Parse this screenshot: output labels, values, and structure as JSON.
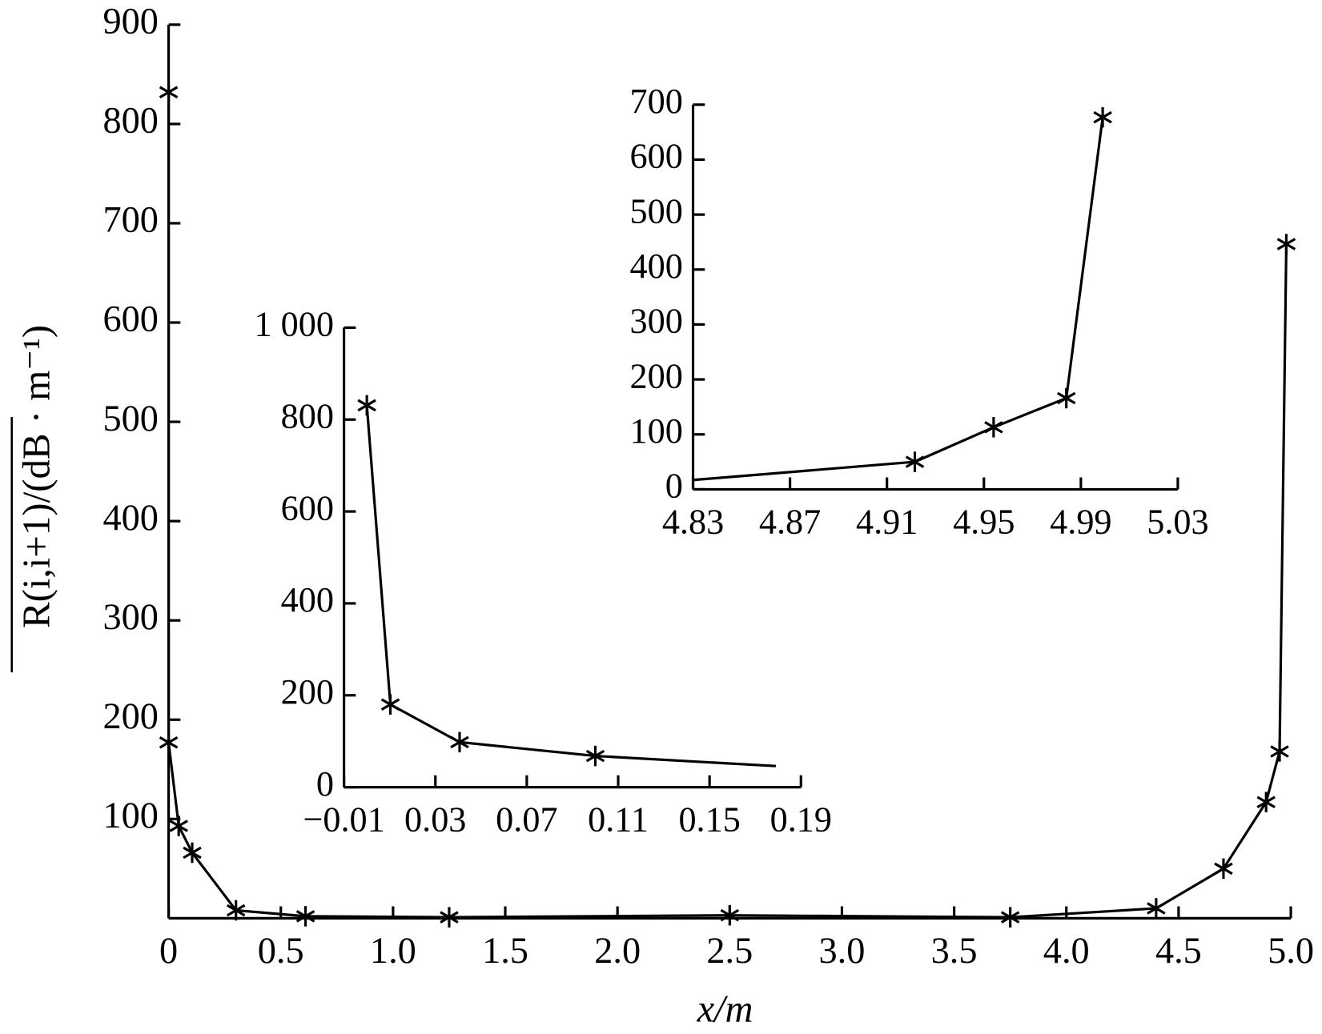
{
  "chart_data": [
    {
      "type": "line",
      "x_label": "x/m",
      "y_label": "R(i,i+1)/(dB · m⁻¹)",
      "color": "#000000",
      "xlim": [
        0,
        5.0
      ],
      "ylim": [
        0,
        900
      ],
      "xticks": [
        0,
        0.5,
        {
          "value": 1,
          "label": "1.0"
        },
        1.5,
        {
          "value": 2,
          "label": "2.0"
        },
        2.5,
        {
          "value": 3,
          "label": "3.0"
        },
        3.5,
        {
          "value": 4,
          "label": "4.0"
        },
        4.5,
        {
          "value": 5,
          "label": "5.0"
        }
      ],
      "yticks": [
        100,
        200,
        300,
        400,
        500,
        600,
        700,
        800,
        900
      ],
      "x": [
        0,
        0,
        0.045,
        0.105,
        0.3,
        0.61,
        1.25,
        2.5,
        3.75,
        4.4,
        4.7,
        4.89,
        4.95,
        4.98
      ],
      "values": [
        832,
        177,
        93,
        66,
        8,
        2,
        1,
        3,
        1,
        10,
        50,
        117,
        168,
        679
      ],
      "markers": [
        true,
        true,
        true,
        true,
        true,
        true,
        true,
        true,
        true,
        true,
        true,
        true,
        true,
        true
      ]
    },
    {
      "type": "line",
      "color": "#000000",
      "xlim": [
        -0.01,
        0.19
      ],
      "ylim": [
        0,
        1000
      ],
      "xticks": [
        {
          "value": -0.01,
          "label": "−0.01"
        },
        0.03,
        0.07,
        0.11,
        0.15,
        0.19
      ],
      "yticks": [
        0,
        200,
        400,
        600,
        800,
        {
          "value": 1000,
          "label": "1 000"
        }
      ],
      "x": [
        0.0,
        0.0103,
        0.0406,
        0.1,
        0.179
      ],
      "values": [
        831,
        180,
        98,
        68,
        46
      ],
      "markers": [
        true,
        true,
        true,
        true,
        false
      ]
    },
    {
      "type": "line",
      "color": "#000000",
      "xlim": [
        4.83,
        5.03
      ],
      "ylim": [
        0,
        700
      ],
      "xticks": [
        4.83,
        4.87,
        4.91,
        4.95,
        4.99,
        5.03
      ],
      "yticks": [
        0,
        100,
        200,
        300,
        400,
        500,
        600,
        700
      ],
      "x": [
        4.83,
        4.9215,
        4.954,
        4.984,
        4.999
      ],
      "values": [
        17,
        50,
        113,
        166,
        677
      ],
      "markers": [
        false,
        true,
        true,
        true,
        true
      ]
    }
  ]
}
